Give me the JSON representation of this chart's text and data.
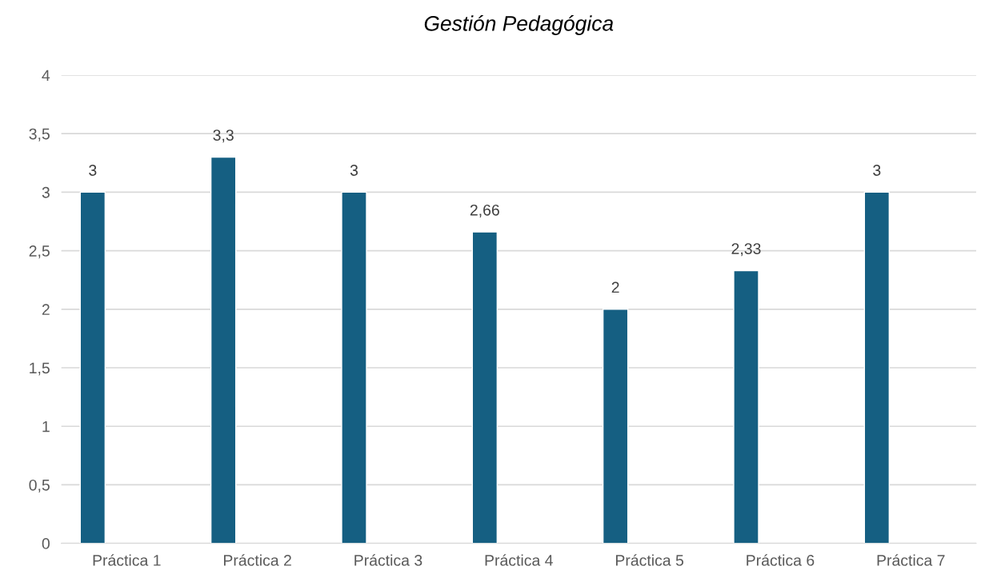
{
  "chart_data": {
    "type": "bar",
    "title": "Gestión Pedagógica",
    "categories": [
      "Práctica 1",
      "Práctica 2",
      "Práctica 3",
      "Práctica 4",
      "Práctica 5",
      "Práctica 6",
      "Práctica 7"
    ],
    "values": [
      3,
      3.3,
      3,
      2.66,
      2,
      2.33,
      3
    ],
    "value_labels": [
      "3",
      "3,3",
      "3",
      "2,66",
      "2",
      "2,33",
      "3"
    ],
    "color": "#155f82",
    "ylim": [
      0,
      4
    ],
    "yticks": [
      0,
      {
        "value": 0.5,
        "label": "0,5"
      },
      1,
      {
        "value": 1.5,
        "label": "1,5"
      },
      2,
      {
        "value": 2.5,
        "label": "2,5"
      },
      3,
      {
        "value": 3.5,
        "label": "3,5"
      },
      4
    ],
    "grid": "y",
    "legend": false
  }
}
